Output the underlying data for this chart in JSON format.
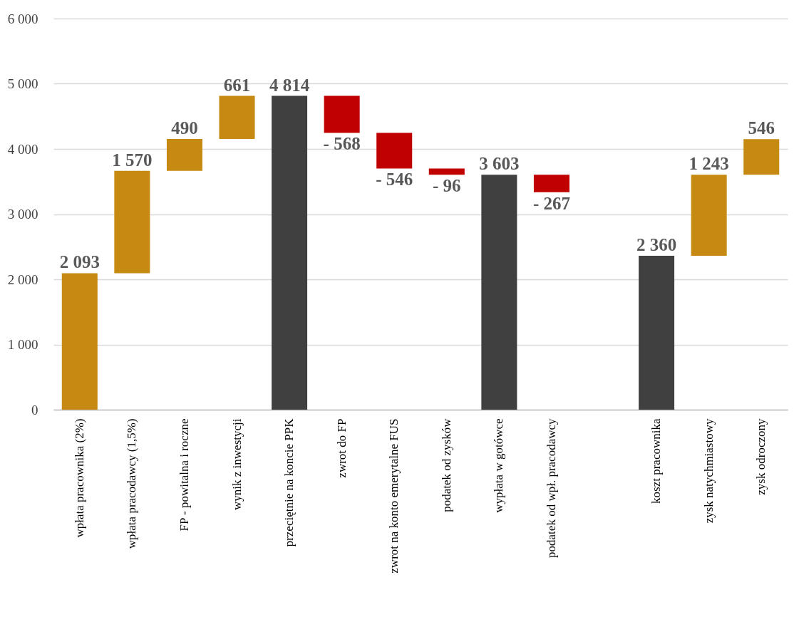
{
  "chart_data": {
    "type": "bar",
    "categories": [
      "wpłata pracownika (2%)",
      "wpłata pracodawcy (1,5%)",
      "FP - powitalna i roczne",
      "wynik z inwestycji",
      "przeciętnie na koncie PPK",
      "zwrot do FP",
      "zwrot na konto emerytalne FUS",
      "podatek od zysków",
      "wypłata w gotówce",
      "podatek od wpł. pracodawcy",
      null,
      "koszt pracownika",
      "zysk natychmiastowy",
      "zysk odroczony"
    ],
    "values": [
      2093,
      1570,
      490,
      661,
      4814,
      -568,
      -546,
      -96,
      3603,
      -267,
      null,
      2360,
      1243,
      546
    ],
    "base": [
      0,
      2093,
      3663,
      4153,
      0,
      4814,
      4246,
      3700,
      0,
      3603,
      null,
      0,
      2360,
      3603
    ],
    "colors": [
      "#c68a12",
      "#c68a12",
      "#c68a12",
      "#c68a12",
      "#404040",
      "#c00000",
      "#c00000",
      "#c00000",
      "#404040",
      "#c00000",
      null,
      "#404040",
      "#c68a12",
      "#c68a12"
    ],
    "value_labels": [
      "2 093",
      "1 570",
      "490",
      "661",
      "4 814",
      "- 568",
      "- 546",
      "- 96",
      "3 603",
      "- 267",
      null,
      "2 360",
      "1 243",
      "546"
    ],
    "ylim": [
      0,
      6000
    ],
    "yticks": [
      {
        "value": 0,
        "label": "0"
      },
      {
        "value": 1000,
        "label": "1 000"
      },
      {
        "value": 2000,
        "label": "2 000"
      },
      {
        "value": 3000,
        "label": "3 000"
      },
      {
        "value": 4000,
        "label": "4 000"
      },
      {
        "value": 5000,
        "label": "5 000"
      },
      {
        "value": 6000,
        "label": "6 000"
      }
    ],
    "grid": "y"
  }
}
